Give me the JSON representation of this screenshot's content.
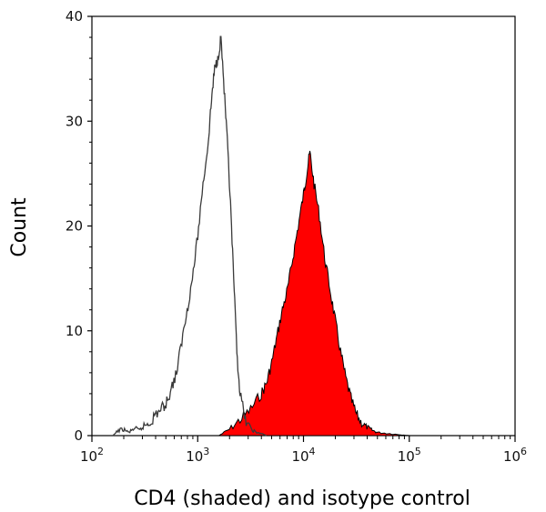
{
  "chart_data": {
    "type": "histogram",
    "title": "",
    "xlabel": "CD4 (shaded) and isotype control",
    "ylabel": "Count",
    "x_scale": "log10",
    "xlim_exp": [
      2,
      6
    ],
    "ylim": [
      0,
      40
    ],
    "y_ticks": [
      0,
      10,
      20,
      30,
      40
    ],
    "x_tick_labels": [
      {
        "base": "10",
        "exp": "2"
      },
      {
        "base": "10",
        "exp": "3"
      },
      {
        "base": "10",
        "exp": "4"
      },
      {
        "base": "10",
        "exp": "5"
      },
      {
        "base": "10",
        "exp": "6"
      }
    ],
    "series": [
      {
        "name": "isotype control",
        "style": "outline",
        "color": "#3a3a3a",
        "x_log10": [
          2.2,
          2.25,
          2.3,
          2.35,
          2.4,
          2.45,
          2.5,
          2.55,
          2.6,
          2.65,
          2.7,
          2.75,
          2.8,
          2.85,
          2.9,
          2.95,
          3.0,
          3.05,
          3.1,
          3.13,
          3.16,
          3.19,
          3.22,
          3.25,
          3.28,
          3.31,
          3.34,
          3.37,
          3.4,
          3.45,
          3.5,
          3.55,
          3.6,
          3.65
        ],
        "counts": [
          0,
          0.5,
          0.6,
          0.3,
          0.7,
          0.5,
          1,
          1.2,
          2,
          2.5,
          3,
          4.5,
          6,
          9,
          12,
          15,
          19,
          24,
          28,
          32,
          35,
          36,
          38,
          33,
          28,
          22,
          15,
          8,
          4,
          1.5,
          0.7,
          0.3,
          0.2,
          0
        ]
      },
      {
        "name": "CD4",
        "style": "shaded",
        "color": "#ff0000",
        "x_log10": [
          3.2,
          3.3,
          3.4,
          3.5,
          3.6,
          3.65,
          3.7,
          3.75,
          3.8,
          3.85,
          3.9,
          3.95,
          4.0,
          4.03,
          4.06,
          4.1,
          4.15,
          4.2,
          4.25,
          4.3,
          4.35,
          4.4,
          4.45,
          4.5,
          4.55,
          4.6,
          4.65,
          4.7,
          4.8,
          4.9,
          5.0
        ],
        "counts": [
          0,
          0.6,
          1.5,
          2.5,
          4,
          5,
          7,
          9.5,
          12,
          14,
          17,
          20,
          23,
          25,
          27,
          24,
          21,
          17,
          14,
          11,
          8,
          5.5,
          3.5,
          2,
          1.2,
          0.8,
          0.5,
          0.3,
          0.2,
          0.1,
          0
        ]
      }
    ]
  }
}
